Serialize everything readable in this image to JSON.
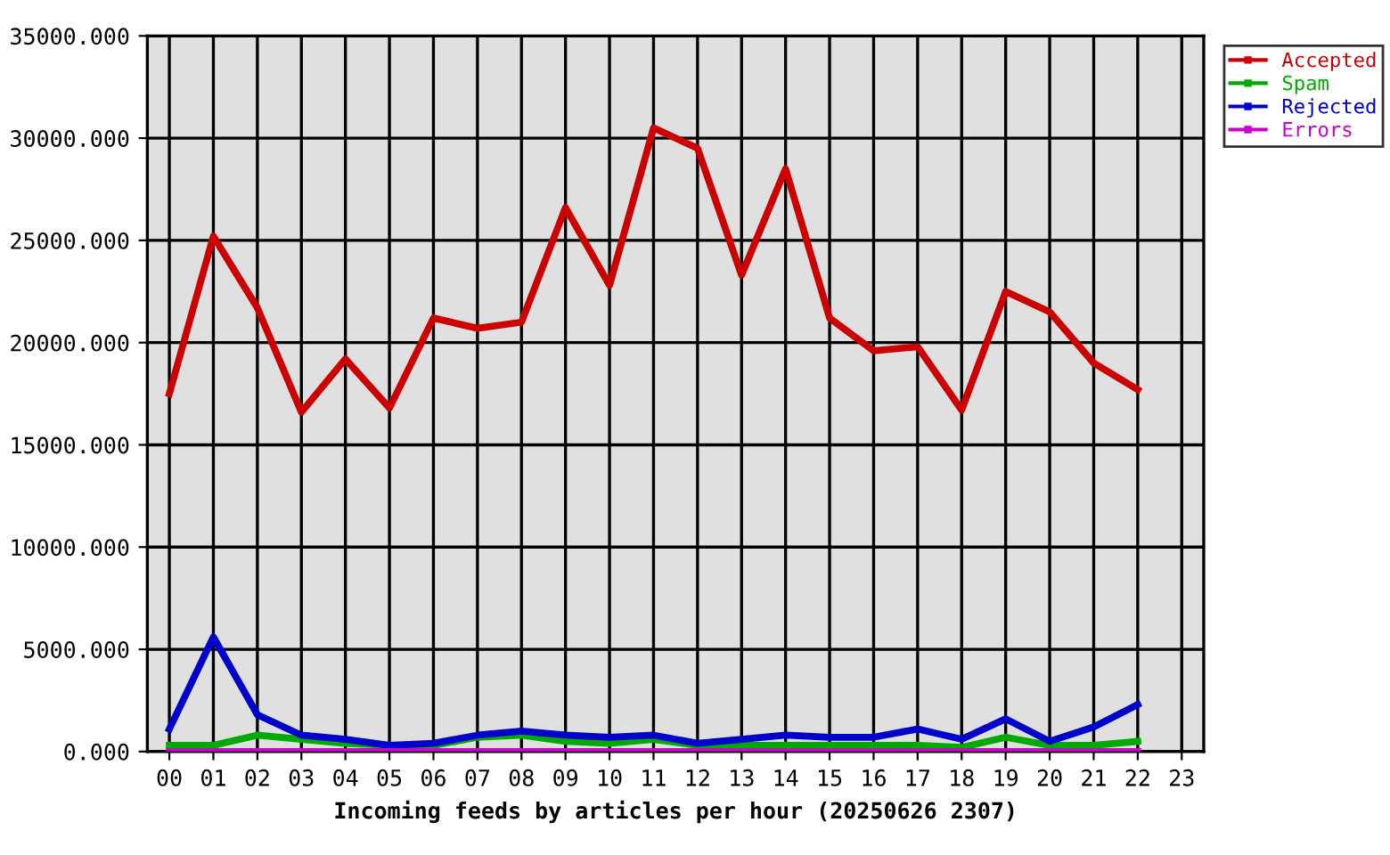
{
  "chart_data": {
    "type": "line",
    "xlabel": "Incoming feeds by articles per hour (20250626 2307)",
    "categories": [
      "00",
      "01",
      "02",
      "03",
      "04",
      "05",
      "06",
      "07",
      "08",
      "09",
      "10",
      "11",
      "12",
      "13",
      "14",
      "15",
      "16",
      "17",
      "18",
      "19",
      "20",
      "21",
      "22",
      "23"
    ],
    "series": [
      {
        "name": "Accepted",
        "color": "#cc0000",
        "values": [
          17500,
          25200,
          21700,
          16600,
          19200,
          16800,
          21200,
          20700,
          21000,
          26600,
          22800,
          30500,
          29500,
          23300,
          28500,
          21200,
          19600,
          19800,
          16700,
          22500,
          21500,
          19000,
          17700,
          null
        ]
      },
      {
        "name": "Spam",
        "color": "#00aa00",
        "values": [
          300,
          300,
          800,
          600,
          400,
          300,
          300,
          700,
          800,
          500,
          400,
          600,
          300,
          300,
          300,
          300,
          300,
          300,
          200,
          700,
          300,
          300,
          500,
          null
        ]
      },
      {
        "name": "Rejected",
        "color": "#0000cc",
        "values": [
          1100,
          5600,
          1800,
          800,
          600,
          300,
          400,
          800,
          1000,
          800,
          700,
          800,
          400,
          600,
          800,
          700,
          700,
          1100,
          600,
          1600,
          500,
          1200,
          2300,
          null
        ]
      },
      {
        "name": "Errors",
        "color": "#cc00cc",
        "values": [
          0,
          0,
          0,
          0,
          0,
          0,
          0,
          0,
          0,
          0,
          0,
          0,
          0,
          0,
          0,
          0,
          0,
          0,
          0,
          0,
          0,
          0,
          0,
          null
        ]
      }
    ],
    "ylim": [
      0,
      35000
    ],
    "yticks": [
      {
        "value": 0,
        "label": "0.000"
      },
      {
        "value": 5000,
        "label": "5000.000"
      },
      {
        "value": 10000,
        "label": "10000.000"
      },
      {
        "value": 15000,
        "label": "15000.000"
      },
      {
        "value": 20000,
        "label": "20000.000"
      },
      {
        "value": 25000,
        "label": "25000.000"
      },
      {
        "value": 30000,
        "label": "30000.000"
      },
      {
        "value": 35000,
        "label": "35000.000"
      }
    ],
    "grid": true,
    "legend": "top right",
    "marker": "none",
    "line_style": "solid"
  }
}
